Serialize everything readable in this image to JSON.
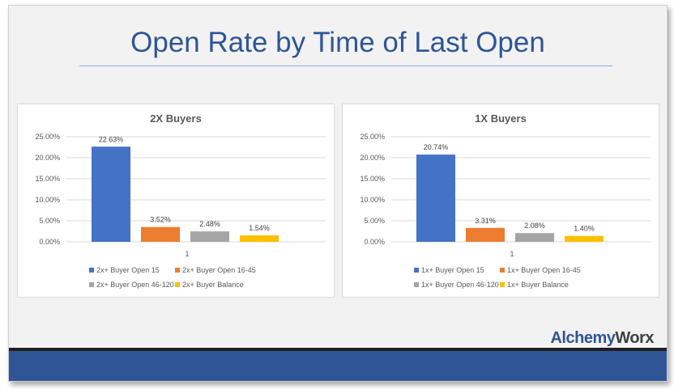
{
  "slide": {
    "title": "Open Rate by Time of Last Open"
  },
  "brand": {
    "part1": "Alchemy",
    "part2": "Worx",
    "color1": "#2f5597",
    "color2": "#404040"
  },
  "chart_data": [
    {
      "type": "bar",
      "title": "2X Buyers",
      "categories": [
        "1"
      ],
      "series": [
        {
          "name": "2x+ Buyer Open 15",
          "values": [
            22.63
          ],
          "label": "22.63%",
          "color": "#4472c4"
        },
        {
          "name": "2x+ Buyer Open 16-45",
          "values": [
            3.52
          ],
          "label": "3.52%",
          "color": "#ed7d31"
        },
        {
          "name": "2x+ Buyer Open 46-120",
          "values": [
            2.48
          ],
          "label": "2.48%",
          "color": "#a5a5a5"
        },
        {
          "name": "2x+ Buyer Balance",
          "values": [
            1.54
          ],
          "label": "1.54%",
          "color": "#ffc000"
        }
      ],
      "ylim": [
        0,
        25
      ],
      "yticks": [
        "25.00%",
        "20.00%",
        "15.00%",
        "10.00%",
        "5.00%",
        "0.00%"
      ],
      "grid": true,
      "legend": "bottom"
    },
    {
      "type": "bar",
      "title": "1X Buyers",
      "categories": [
        "1"
      ],
      "series": [
        {
          "name": "1x+ Buyer Open 15",
          "values": [
            20.74
          ],
          "label": "20.74%",
          "color": "#4472c4"
        },
        {
          "name": "1x+ Buyer Open 16-45",
          "values": [
            3.31
          ],
          "label": "3.31%",
          "color": "#ed7d31"
        },
        {
          "name": "1x+ Buyer Open 46-120",
          "values": [
            2.08
          ],
          "label": "2.08%",
          "color": "#a5a5a5"
        },
        {
          "name": "1x+ Buyer Balance",
          "values": [
            1.4
          ],
          "label": "1.40%",
          "color": "#ffc000"
        }
      ],
      "ylim": [
        0,
        25
      ],
      "yticks": [
        "25.00%",
        "20.00%",
        "15.00%",
        "10.00%",
        "5.00%",
        "0.00%"
      ],
      "grid": true,
      "legend": "bottom"
    }
  ]
}
